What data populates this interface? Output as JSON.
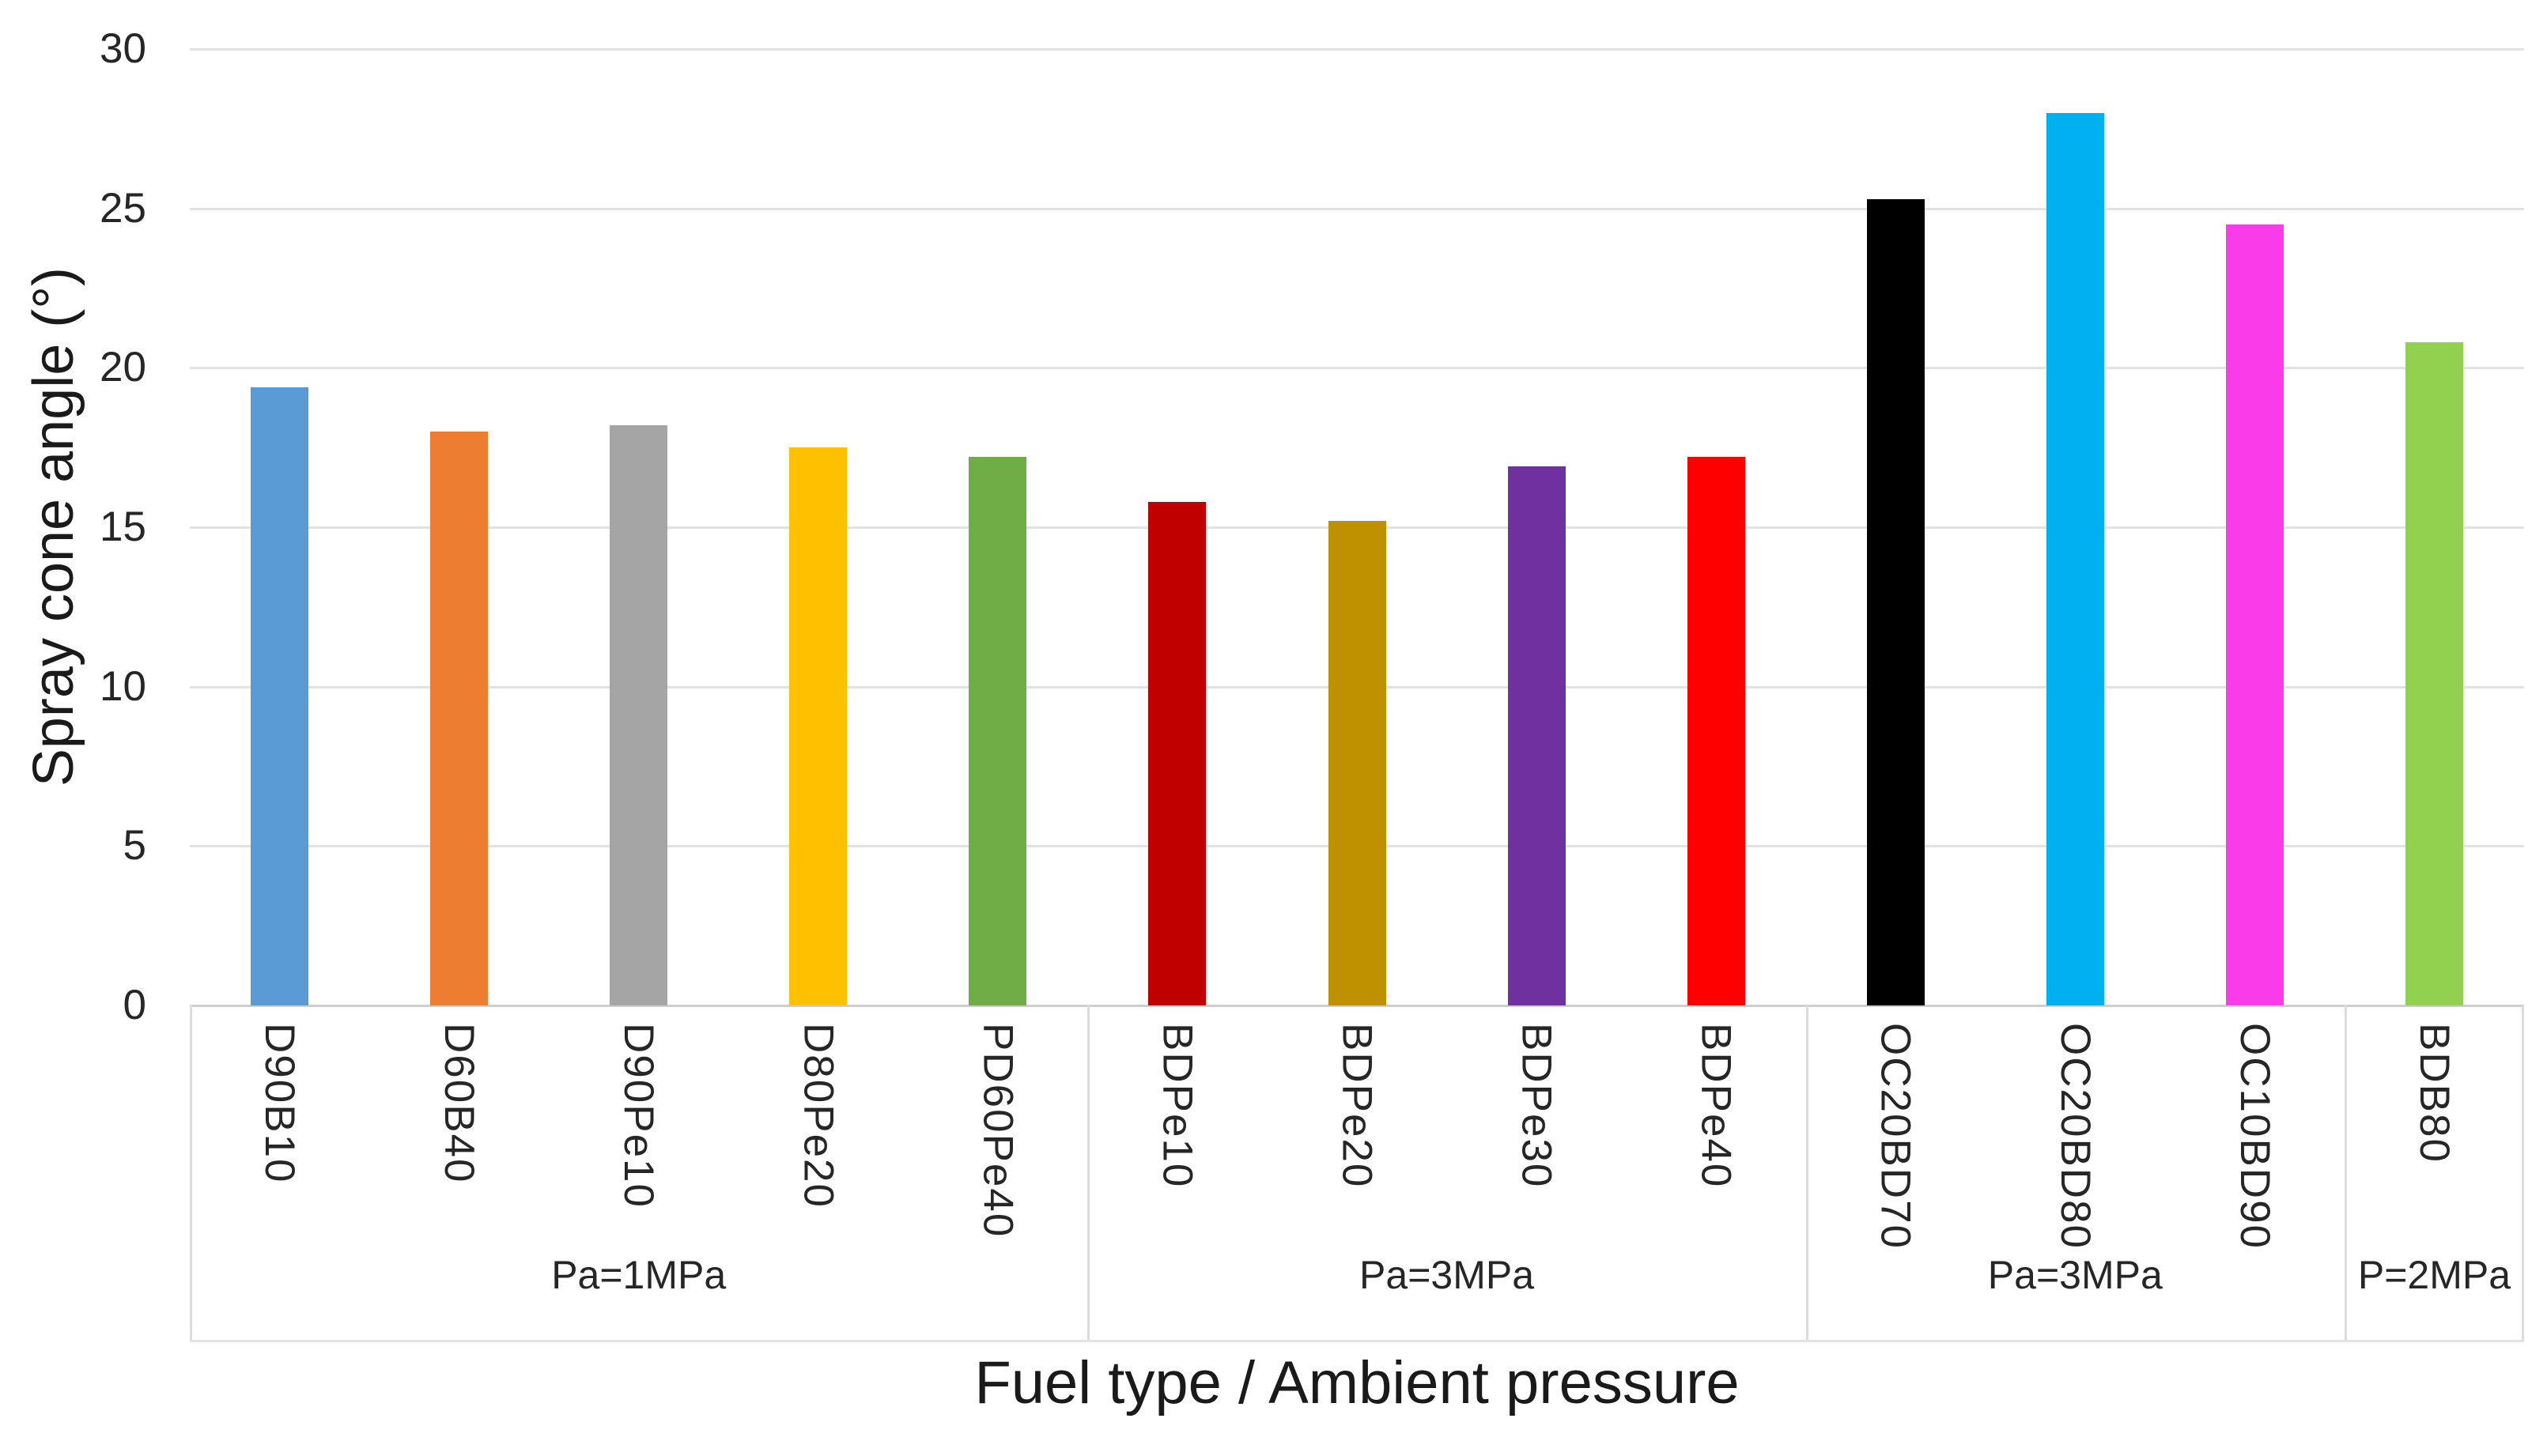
{
  "chart_data": {
    "type": "bar",
    "title": "",
    "xlabel": "Fuel type / Ambient pressure",
    "ylabel": "Spray cone angle (°)",
    "ylim": [
      0,
      30
    ],
    "yticks": [
      0,
      5,
      10,
      15,
      20,
      25,
      30
    ],
    "grid": true,
    "legend_position": "none",
    "categories": [
      "D90B10",
      "D60B40",
      "D90Pe10",
      "D80Pe20",
      "PD60Pe40",
      "BDPe10",
      "BDPe20",
      "BDPe30",
      "BDPe40",
      "OC20BD70",
      "OC20BD80",
      "OC10BD90",
      "BDB80"
    ],
    "values": [
      19.4,
      18.0,
      18.2,
      17.5,
      17.2,
      15.8,
      15.2,
      16.9,
      17.2,
      25.3,
      28.0,
      24.5,
      20.8
    ],
    "bar_colors": [
      "#5B9BD5",
      "#ED7D31",
      "#A5A5A5",
      "#FFC000",
      "#70AD47",
      "#C00000",
      "#BF9000",
      "#7030A0",
      "#FF0000",
      "#000000",
      "#00B0F0",
      "#F93BE9",
      "#92D050"
    ],
    "groups": [
      {
        "label": "Pa=1MPa",
        "count": 5
      },
      {
        "label": "Pa=3MPa",
        "count": 4
      },
      {
        "label": "Pa=3MPa",
        "count": 3
      },
      {
        "label": "P=2MPa",
        "count": 1
      }
    ]
  },
  "colors": {
    "gridline": "#e2e2e2",
    "axis_line": "#cfcfcf",
    "divider": "#dcdcdc",
    "tick_text": "#262626",
    "title_text": "#1a1a1a"
  }
}
